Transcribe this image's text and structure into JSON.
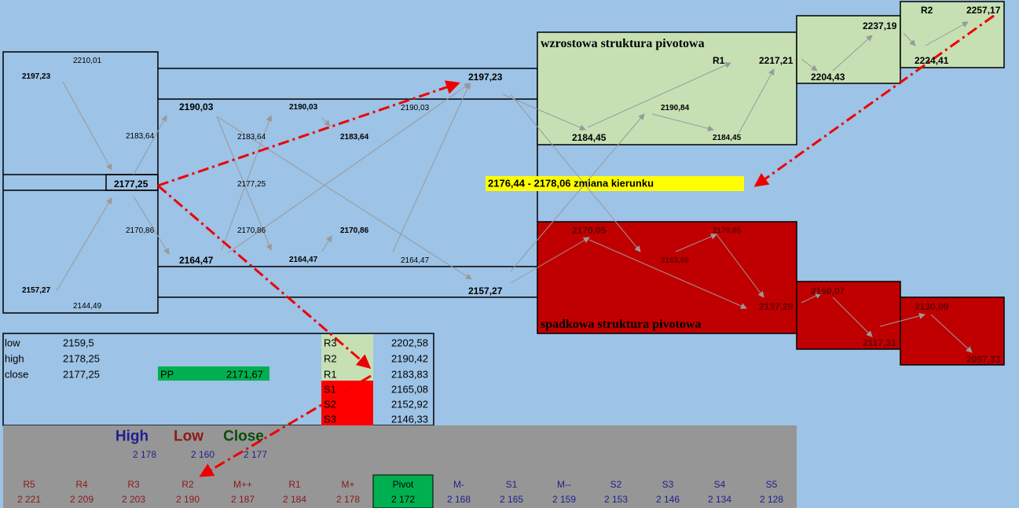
{
  "diagram": {
    "labels": [
      "2210,01",
      "2197,23",
      "2183,64",
      "2177,25",
      "2170,86",
      "2157,27",
      "2144,49",
      "2190,03",
      "2183,64",
      "2177,25",
      "2170,86",
      "2164,47",
      "2190,03",
      "2183,64",
      "2170,86",
      "2164,47",
      "2190,03",
      "2164,47",
      "2197,23",
      "2157,27"
    ],
    "green_title": "wzrostowa struktura pivotowa",
    "green_labels": [
      "R1",
      "2217,21",
      "2184,45",
      "2190,84",
      "2184,45",
      "2204,43",
      "2237,19",
      "R2",
      "2257,17",
      "2224,41"
    ],
    "zone_label": "2176,44 - 2178,06 zmiana kierunku",
    "red_title": "spadkowa struktura pivotowa",
    "red_labels": [
      "2170,05",
      "2163,66",
      "2170,05",
      "2137,29",
      "2150,07",
      "2117,31",
      "2130,09",
      "2097,33"
    ]
  },
  "table": {
    "rows": [
      [
        "low",
        "2159,5"
      ],
      [
        "high",
        "2178,25"
      ],
      [
        "close",
        "2177,25"
      ]
    ],
    "pp": [
      "PP",
      "2171,67"
    ],
    "pivots": [
      [
        "R3",
        "2202,58"
      ],
      [
        "R2",
        "2190,42"
      ],
      [
        "R1",
        "2183,83"
      ],
      [
        "S1",
        "2165,08"
      ],
      [
        "S2",
        "2152,92"
      ],
      [
        "S3",
        "2146,33"
      ]
    ]
  },
  "summary": {
    "hlc": [
      {
        "label": "High",
        "value": "2 178"
      },
      {
        "label": "Low",
        "value": "2 160"
      },
      {
        "label": "Close",
        "value": "2 177"
      }
    ],
    "levels": [
      {
        "label": "R5",
        "value": "2 221"
      },
      {
        "label": "R4",
        "value": "2 209"
      },
      {
        "label": "R3",
        "value": "2 203"
      },
      {
        "label": "R2",
        "value": "2 190"
      },
      {
        "label": "M++",
        "value": "2 187"
      },
      {
        "label": "R1",
        "value": "2 184"
      },
      {
        "label": "M+",
        "value": "2 178"
      },
      {
        "label": "Pivot",
        "value": "2 172"
      },
      {
        "label": "M-",
        "value": "2 168"
      },
      {
        "label": "S1",
        "value": "2 165"
      },
      {
        "label": "M--",
        "value": "2 159"
      },
      {
        "label": "S2",
        "value": "2 153"
      },
      {
        "label": "S3",
        "value": "2 146"
      },
      {
        "label": "S4",
        "value": "2 134"
      },
      {
        "label": "S5",
        "value": "2 128"
      }
    ]
  }
}
